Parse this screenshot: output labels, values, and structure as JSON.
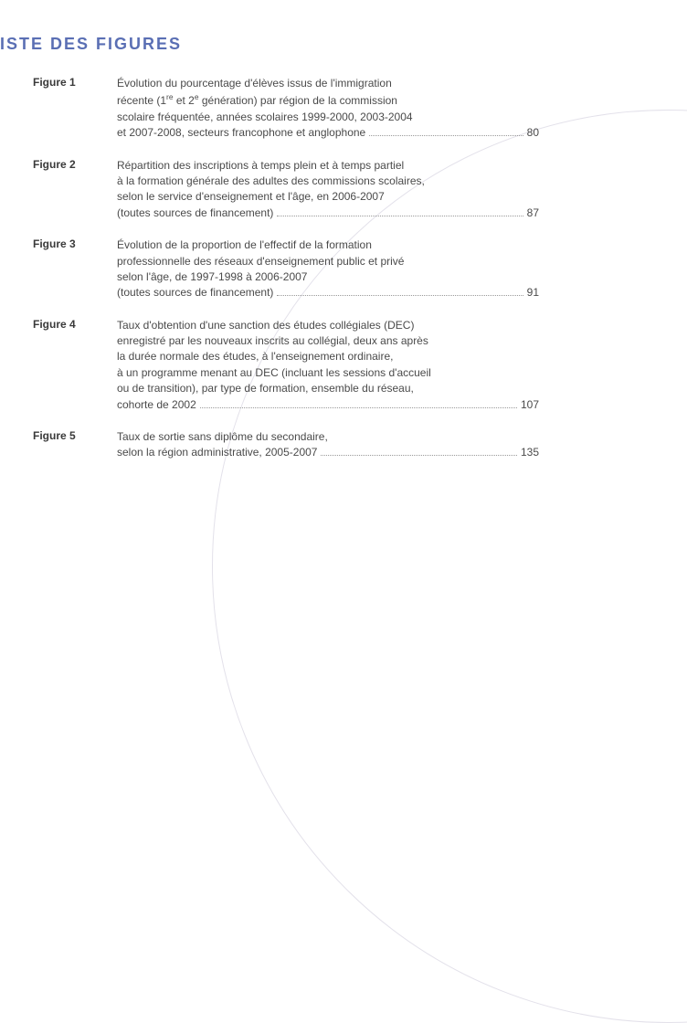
{
  "colors": {
    "heading": "#5a6fb4",
    "text": "#4a4a4a",
    "label": "#3a3a3a",
    "curve": "#e3e1ea",
    "background": "#ffffff",
    "dots": "#9a9a9a"
  },
  "typography": {
    "heading_fontsize": 18,
    "heading_letterspacing": 2,
    "body_fontsize": 12,
    "body_lineheight": 1.45
  },
  "heading": "ISTE DES FIGURES",
  "figures": [
    {
      "label": "Figure 1",
      "lines": [
        "Évolution du pourcentage d'élèves issus de l'immigration",
        "récente (1<sup>re</sup> et 2<sup>e</sup> génération) par région de la commission",
        "scolaire fréquentée, années scolaires 1999-2000, 2003-2004"
      ],
      "last": "et 2007-2008, secteurs francophone et anglophone",
      "page": "80"
    },
    {
      "label": "Figure 2",
      "lines": [
        "Répartition des inscriptions à temps plein et à temps partiel",
        "à la formation générale des adultes des commissions scolaires,",
        "selon le service d'enseignement et l'âge, en 2006-2007"
      ],
      "last": "(toutes sources de financement)",
      "page": "87"
    },
    {
      "label": "Figure 3",
      "lines": [
        "Évolution de la proportion de l'effectif de la formation",
        "professionnelle des réseaux d'enseignement public et privé",
        "selon l'âge, de 1997-1998 à 2006-2007"
      ],
      "last": "(toutes sources de financement)",
      "page": "91"
    },
    {
      "label": "Figure 4",
      "lines": [
        "Taux d'obtention d'une sanction des études collégiales (DEC)",
        "enregistré par les nouveaux inscrits au collégial, deux ans après",
        "la durée normale des études, à l'enseignement ordinaire,",
        "à un programme menant au DEC (incluant les sessions d'accueil",
        "ou de transition), par type de formation, ensemble du réseau,"
      ],
      "last": "cohorte de 2002",
      "page": "107"
    },
    {
      "label": "Figure 5",
      "lines": [
        "Taux de sortie sans diplôme du secondaire,"
      ],
      "last": "selon la région administrative, 2005-2007",
      "page": "135"
    }
  ]
}
